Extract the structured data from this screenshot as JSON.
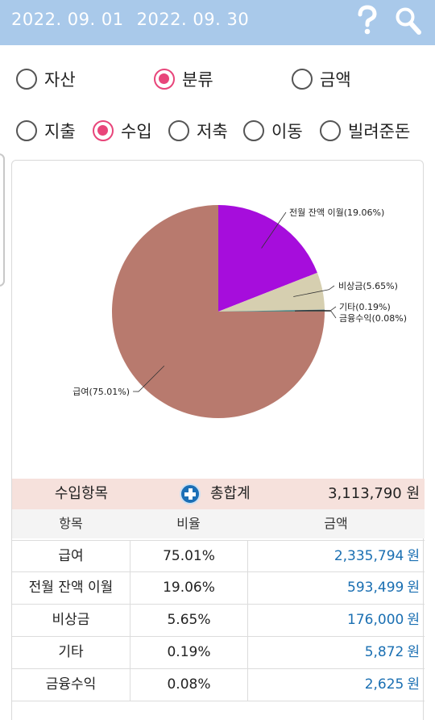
{
  "header": {
    "start_date": "2022. 09. 01",
    "end_date": "2022. 09. 30",
    "help_icon": "question-icon",
    "search_icon": "search-icon",
    "bar_color": "#a9c9ea"
  },
  "view_mode": {
    "options": [
      {
        "label": "자산",
        "checked": false
      },
      {
        "label": "분류",
        "checked": true
      },
      {
        "label": "금액",
        "checked": false
      }
    ]
  },
  "category_type": {
    "options": [
      {
        "label": "지출",
        "checked": false
      },
      {
        "label": "수입",
        "checked": true
      },
      {
        "label": "저축",
        "checked": false
      },
      {
        "label": "이동",
        "checked": false
      },
      {
        "label": "빌려준돈",
        "checked": false
      }
    ]
  },
  "chart_data": {
    "type": "pie",
    "slices": [
      {
        "label": "전월 잔액 이월(19.06%)",
        "value": 19.06,
        "color": "#a60ddc"
      },
      {
        "label": "비상금(5.65%)",
        "value": 5.65,
        "color": "#d6cfb0"
      },
      {
        "label": "기타(0.19%)",
        "value": 0.19,
        "color": "#2f6b82"
      },
      {
        "label": "금융수익(0.08%)",
        "value": 0.08,
        "color": "#3a9a5a"
      },
      {
        "label": "급여(75.01%)",
        "value": 75.01,
        "color": "#b87a6e"
      }
    ]
  },
  "summary": {
    "label": "수입항목",
    "plus_icon": "plus-circle-icon",
    "total_label": "총합계",
    "total_value": "3,113,790 원",
    "bg_color": "#f6e1dc"
  },
  "table": {
    "headers": [
      "항목",
      "비율",
      "금액"
    ],
    "rows": [
      {
        "item": "급여",
        "ratio": "75.01%",
        "amount": "2,335,794",
        "unit": "원"
      },
      {
        "item": "전월 잔액 이월",
        "ratio": "19.06%",
        "amount": "593,499",
        "unit": "원"
      },
      {
        "item": "비상금",
        "ratio": "5.65%",
        "amount": "176,000",
        "unit": "원"
      },
      {
        "item": "기타",
        "ratio": "0.19%",
        "amount": "5,872",
        "unit": "원"
      },
      {
        "item": "금융수익",
        "ratio": "0.08%",
        "amount": "2,625",
        "unit": "원"
      }
    ],
    "amount_color": "#1a6fb2"
  }
}
